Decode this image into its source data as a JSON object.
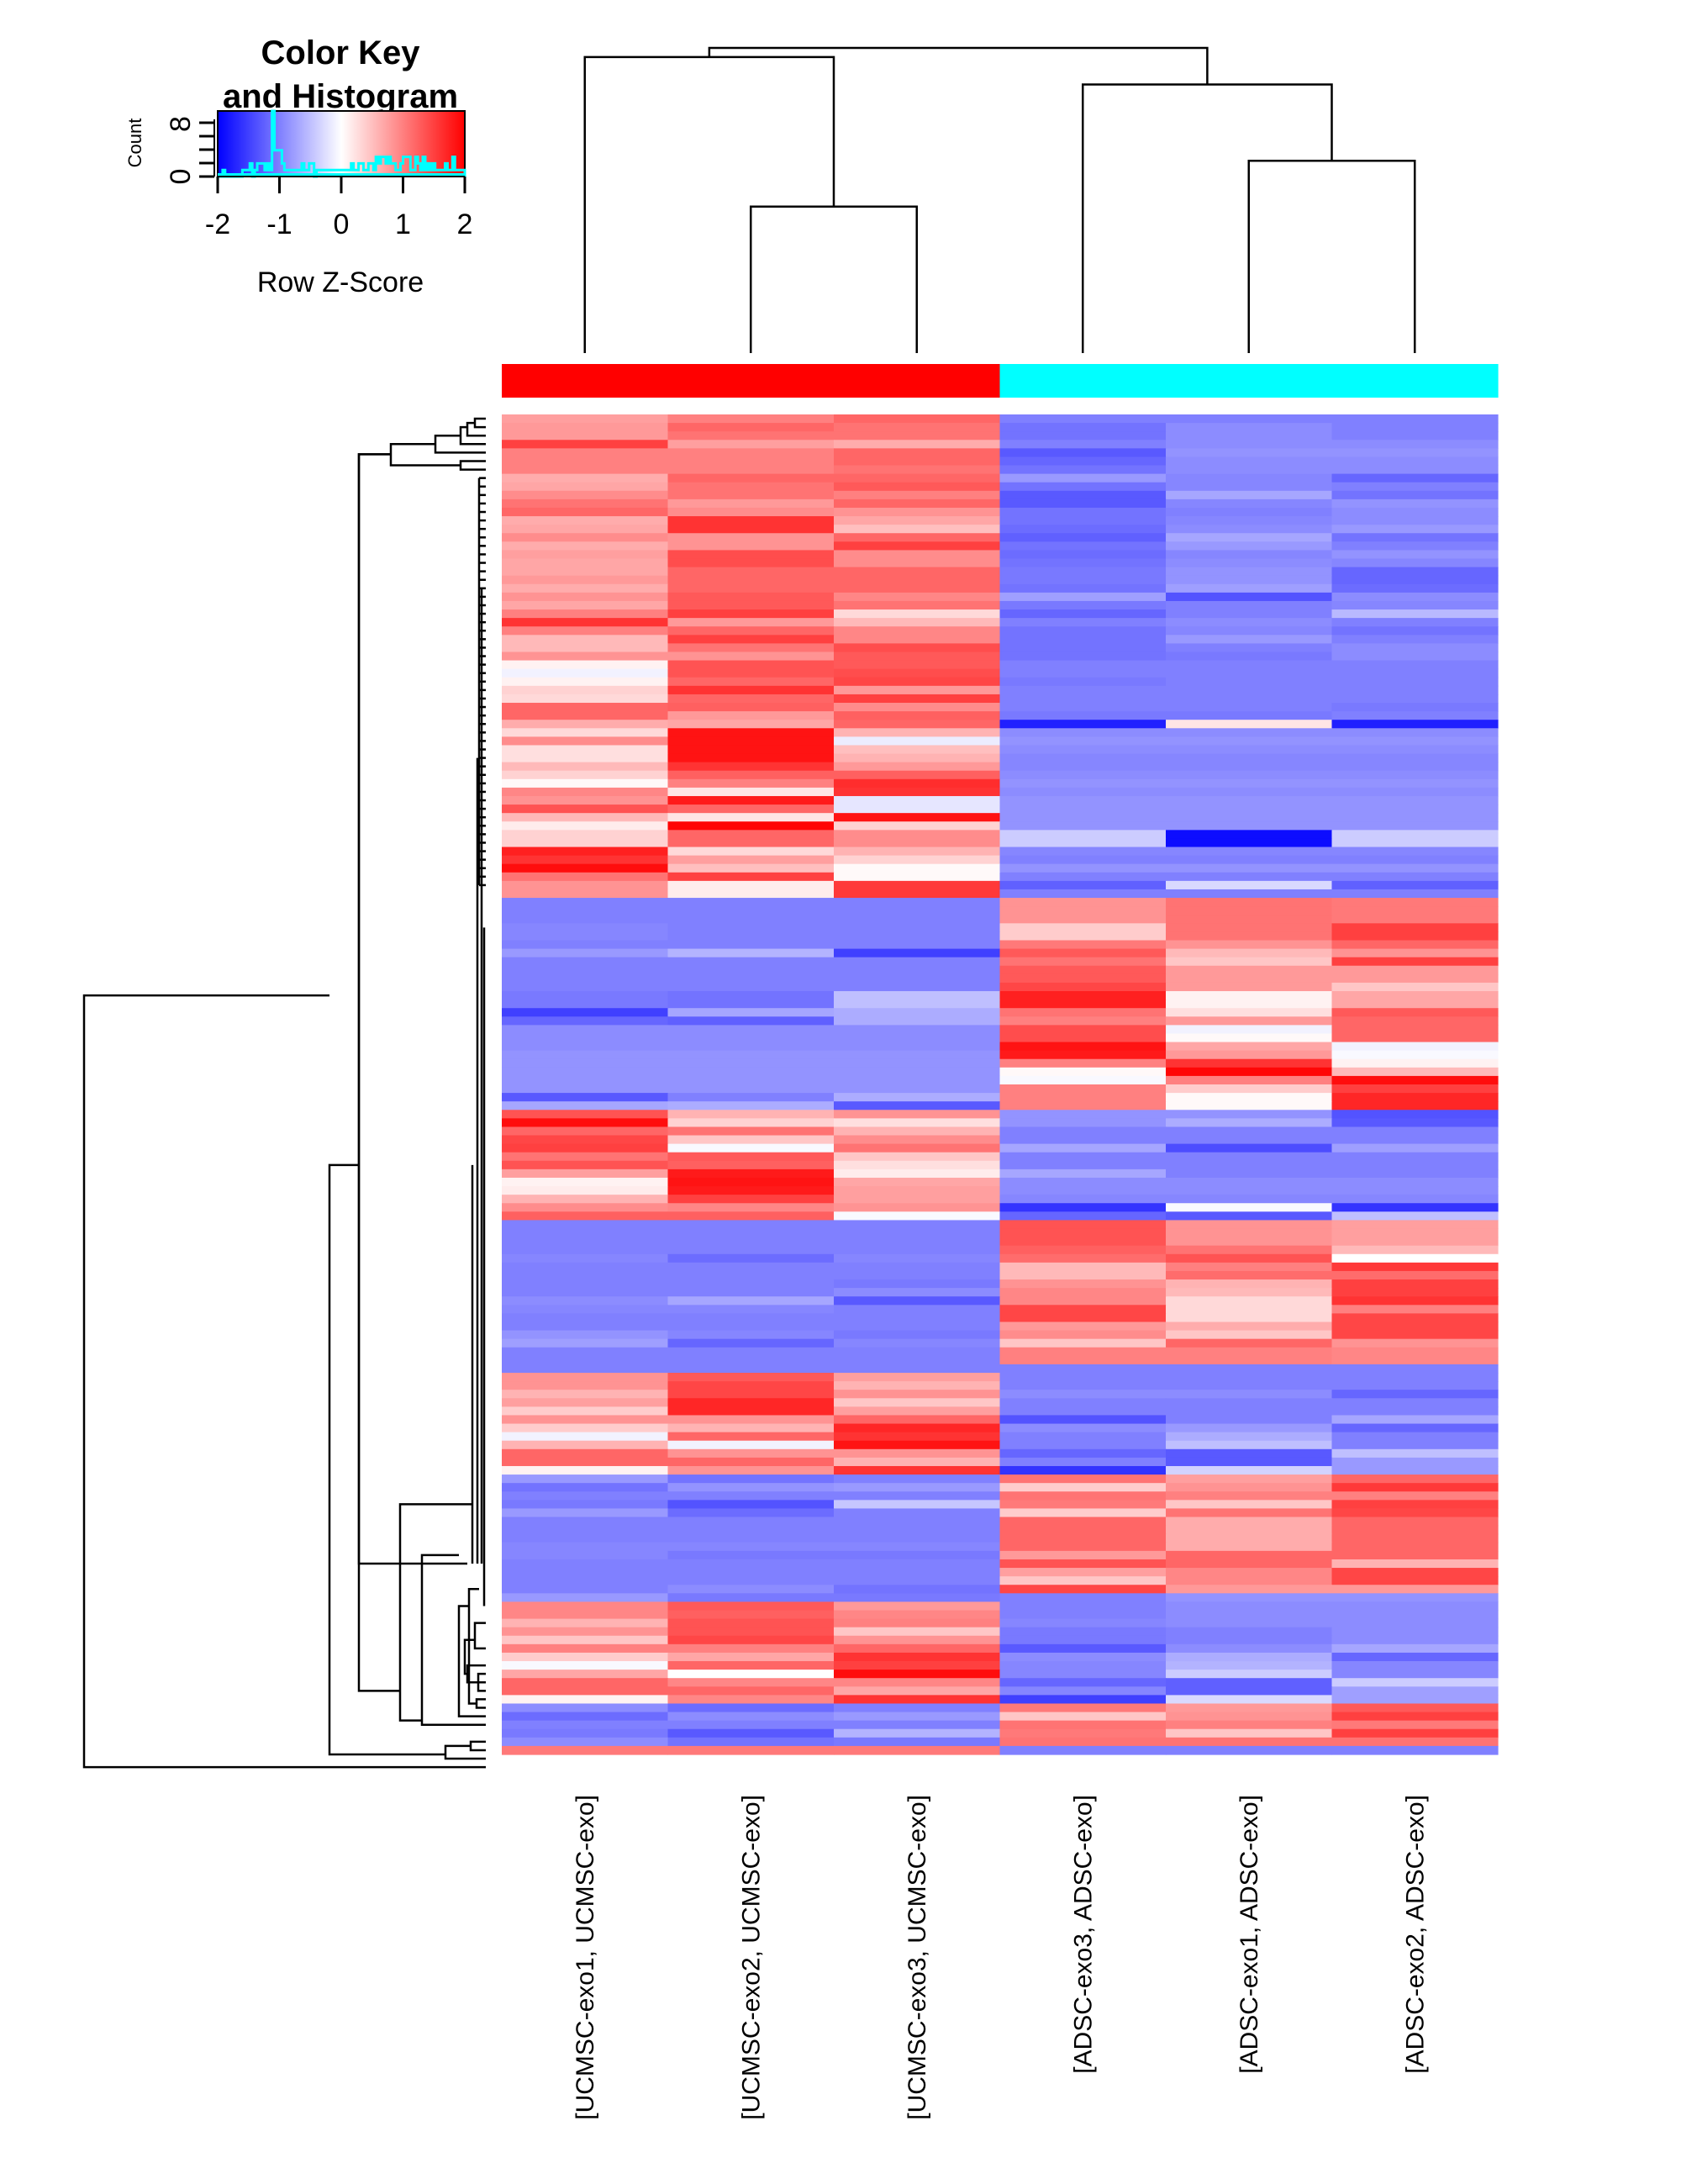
{
  "chart_data": {
    "type": "heatmap",
    "title": "",
    "color_key": {
      "title_line1": "Color Key",
      "title_line2": "and Histogram",
      "xlabel": "Row Z-Score",
      "ylabel": "Count",
      "x_ticks": [
        "-2",
        "-1",
        "0",
        "1",
        "2"
      ],
      "x_range": [
        -2,
        2
      ],
      "y_ticks": [
        "0",
        "8"
      ],
      "y_range": [
        0,
        10
      ],
      "low_color": "#0000ff",
      "mid_color": "#ffffff",
      "high_color": "#ff0000",
      "histogram_color": "#00ffff",
      "histogram_counts": [
        0,
        0,
        1,
        0,
        0,
        0,
        0,
        0,
        0,
        0,
        1,
        1,
        1,
        2,
        0,
        1,
        2,
        2,
        2,
        1,
        2,
        1,
        10,
        4,
        4,
        4,
        2,
        1,
        1,
        1,
        1,
        1,
        1,
        1,
        2,
        1,
        1,
        2,
        2,
        0,
        1,
        1,
        1,
        1,
        1,
        1,
        1,
        1,
        1,
        1,
        1,
        1,
        1,
        1,
        2,
        1,
        1,
        2,
        2,
        1,
        1,
        2,
        2,
        1,
        3,
        2,
        3,
        3,
        2,
        3,
        2,
        2,
        1,
        1,
        2,
        3,
        3,
        3,
        1,
        1,
        3,
        2,
        1,
        3,
        1,
        2,
        1,
        2,
        1,
        1,
        1,
        1,
        2,
        1,
        1,
        3,
        1,
        1,
        1,
        1
      ]
    },
    "columns": [
      "[UCMSC-exo1, UCMSC-exo]",
      "[UCMSC-exo2, UCMSC-exo]",
      "[UCMSC-exo3, UCMSC-exo]",
      "[ADSC-exo3, ADSC-exo]",
      "[ADSC-exo1, ADSC-exo]",
      "[ADSC-exo2, ADSC-exo]"
    ],
    "column_groups": [
      "UCMSC-exo",
      "UCMSC-exo",
      "UCMSC-exo",
      "ADSC-exo",
      "ADSC-exo",
      "ADSC-exo"
    ],
    "group_colors": {
      "UCMSC-exo": "#ff0000",
      "ADSC-exo": "#00ffff"
    },
    "column_dendrogram": {
      "merges": [
        {
          "left": [
            1
          ],
          "right": [
            2
          ],
          "height": 0.48
        },
        {
          "left": [
            4
          ],
          "right": [
            5
          ],
          "height": 0.63
        },
        {
          "left": [
            0
          ],
          "right": [
            1,
            2
          ],
          "height": 0.97
        },
        {
          "left": [
            3
          ],
          "right": [
            4,
            5
          ],
          "height": 0.88
        },
        {
          "left": [
            0,
            1,
            2
          ],
          "right": [
            3,
            4,
            5
          ],
          "height": 1.0
        }
      ]
    },
    "rows": [
      [
        0.75,
        1.0,
        1.2,
        -1.0,
        -1.0,
        -1.0
      ],
      [
        0.8,
        1.2,
        1.1,
        -1.1,
        -0.9,
        -1.0
      ],
      [
        0.8,
        1.1,
        1.1,
        -1.1,
        -0.9,
        -1.0
      ],
      [
        1.5,
        0.75,
        0.65,
        -1.0,
        -0.9,
        -0.9
      ],
      [
        1.0,
        1.0,
        1.2,
        -1.3,
        -0.85,
        -0.85
      ],
      [
        1.0,
        1.0,
        1.2,
        -1.2,
        -0.9,
        -0.9
      ],
      [
        1.0,
        1.0,
        1.1,
        -1.1,
        -0.9,
        -0.9
      ],
      [
        0.65,
        1.2,
        1.2,
        -0.8,
        -0.95,
        -1.2
      ],
      [
        0.7,
        1.1,
        1.3,
        -1.1,
        -0.95,
        -1.0
      ],
      [
        0.9,
        1.1,
        1.0,
        -1.3,
        -0.7,
        -1.1
      ],
      [
        1.1,
        0.8,
        1.2,
        -1.3,
        -0.95,
        -0.85
      ],
      [
        1.2,
        0.9,
        0.85,
        -1.1,
        -1.0,
        -0.9
      ],
      [
        0.65,
        1.6,
        0.7,
        -1.1,
        -0.95,
        -0.9
      ],
      [
        0.7,
        1.6,
        0.5,
        -1.15,
        -0.9,
        -0.8
      ],
      [
        0.9,
        0.85,
        1.2,
        -1.25,
        -0.7,
        -1.1
      ],
      [
        0.65,
        0.85,
        1.5,
        -1.1,
        -0.8,
        -1.0
      ],
      [
        0.75,
        1.4,
        0.9,
        -1.15,
        -0.95,
        -0.85
      ],
      [
        0.7,
        1.4,
        0.9,
        -1.1,
        -0.9,
        -0.95
      ],
      [
        0.7,
        1.2,
        1.2,
        -1.05,
        -0.85,
        -1.2
      ],
      [
        0.8,
        1.2,
        1.2,
        -1.05,
        -0.85,
        -1.2
      ],
      [
        0.65,
        1.2,
        1.2,
        -1.1,
        -0.75,
        -1.15
      ],
      [
        0.85,
        1.3,
        0.95,
        -0.75,
        -1.35,
        -0.9
      ],
      [
        0.7,
        1.3,
        1.1,
        -1.05,
        -1.0,
        -0.95
      ],
      [
        1.0,
        1.5,
        0.3,
        -1.2,
        -1.0,
        -0.55
      ],
      [
        1.6,
        0.8,
        0.55,
        -1.0,
        -0.9,
        -1.0
      ],
      [
        1.0,
        1.2,
        0.95,
        -1.1,
        -0.95,
        -1.1
      ],
      [
        0.55,
        1.5,
        0.95,
        -1.1,
        -0.8,
        -1.0
      ],
      [
        0.55,
        1.1,
        1.4,
        -1.1,
        -1.0,
        -0.9
      ],
      [
        0.85,
        0.85,
        1.3,
        -1.1,
        -1.05,
        -0.9
      ],
      [
        0.1,
        1.35,
        1.3,
        -1.0,
        -1.0,
        -1.0
      ],
      [
        -0.1,
        1.35,
        1.4,
        -1.0,
        -1.0,
        -1.0
      ],
      [
        0.1,
        1.2,
        1.45,
        -1.05,
        -1.0,
        -1.0
      ],
      [
        0.35,
        1.6,
        0.8,
        -1.0,
        -1.0,
        -1.0
      ],
      [
        0.3,
        1.2,
        1.5,
        -1.0,
        -1.0,
        -1.0
      ],
      [
        1.2,
        1.25,
        0.9,
        -1.0,
        -1.0,
        -1.05
      ],
      [
        1.2,
        0.8,
        1.25,
        -1.05,
        -1.05,
        -1.0
      ],
      [
        0.65,
        0.7,
        1.2,
        -1.75,
        0.2,
        -1.75
      ],
      [
        0.3,
        1.85,
        0.6,
        -0.9,
        -0.9,
        -0.9
      ],
      [
        0.9,
        1.85,
        -0.15,
        -0.85,
        -0.85,
        -0.85
      ],
      [
        0.25,
        1.85,
        0.5,
        -0.9,
        -0.9,
        -0.9
      ],
      [
        0.25,
        1.85,
        0.6,
        -0.95,
        -0.95,
        -0.95
      ],
      [
        0.55,
        1.6,
        0.8,
        -0.95,
        -0.95,
        -0.95
      ],
      [
        0.35,
        1.25,
        1.25,
        -0.9,
        -0.9,
        -0.9
      ],
      [
        0.05,
        1.0,
        1.65,
        -0.85,
        -0.85,
        -0.85
      ],
      [
        0.95,
        0.2,
        1.6,
        -0.9,
        -0.9,
        -0.9
      ],
      [
        0.85,
        1.8,
        -0.2,
        -0.85,
        -0.85,
        -0.85
      ],
      [
        1.35,
        1.2,
        -0.2,
        -0.85,
        -0.85,
        -0.85
      ],
      [
        0.55,
        0.2,
        1.85,
        -0.85,
        -0.85,
        -0.85
      ],
      [
        0.15,
        1.95,
        0.35,
        -0.85,
        -0.85,
        -0.85
      ],
      [
        0.35,
        1.2,
        0.9,
        -0.4,
        -1.9,
        -0.4
      ],
      [
        0.35,
        1.2,
        0.9,
        -0.4,
        -1.9,
        -0.4
      ],
      [
        1.75,
        0.3,
        0.6,
        -0.95,
        -0.95,
        -0.95
      ],
      [
        1.6,
        0.75,
        0.35,
        -1.0,
        -1.0,
        -1.0
      ],
      [
        1.9,
        0.5,
        0.05,
        -0.85,
        -0.85,
        -0.85
      ],
      [
        1.1,
        1.5,
        0.05,
        -1.0,
        -1.0,
        -1.0
      ],
      [
        0.85,
        0.15,
        1.55,
        -1.25,
        -0.3,
        -1.25
      ],
      [
        0.85,
        0.15,
        1.55,
        -1.0,
        -1.0,
        -1.0
      ],
      [
        -1.0,
        -1.0,
        -1.0,
        0.85,
        1.1,
        1.05
      ],
      [
        -1.0,
        -1.0,
        -1.0,
        0.85,
        1.1,
        1.05
      ],
      [
        -1.0,
        -1.0,
        -1.0,
        0.85,
        1.1,
        1.05
      ],
      [
        -0.95,
        -1.0,
        -1.0,
        0.4,
        1.1,
        1.5
      ],
      [
        -0.95,
        -1.0,
        -1.0,
        0.4,
        1.1,
        1.5
      ],
      [
        -1.0,
        -1.0,
        -1.0,
        1.05,
        0.85,
        1.2
      ],
      [
        -0.8,
        -0.6,
        -1.5,
        1.3,
        0.55,
        0.85
      ],
      [
        -1.0,
        -1.0,
        -1.0,
        1.1,
        0.45,
        1.5
      ],
      [
        -1.0,
        -1.0,
        -1.0,
        1.3,
        0.8,
        0.8
      ],
      [
        -1.0,
        -1.0,
        -1.0,
        1.3,
        0.8,
        0.8
      ],
      [
        -1.0,
        -1.0,
        -1.0,
        1.45,
        0.8,
        0.45
      ],
      [
        -1.05,
        -1.1,
        -0.5,
        1.75,
        0.1,
        0.7
      ],
      [
        -1.05,
        -1.1,
        -0.5,
        1.75,
        0.1,
        0.7
      ],
      [
        -1.5,
        -0.7,
        -0.65,
        1.1,
        0.25,
        1.3
      ],
      [
        -1.2,
        -1.25,
        -0.65,
        1.0,
        0.8,
        1.2
      ],
      [
        -0.9,
        -0.9,
        -0.9,
        1.4,
        -0.1,
        1.2
      ],
      [
        -0.9,
        -0.9,
        -0.9,
        1.4,
        0.05,
        1.2
      ],
      [
        -0.9,
        -0.9,
        -0.9,
        1.85,
        0.7,
        -0.1
      ],
      [
        -0.85,
        -0.85,
        -0.85,
        1.8,
        0.8,
        -0.05
      ],
      [
        -0.85,
        -0.85,
        -0.85,
        1.0,
        1.6,
        0.1
      ],
      [
        -0.85,
        -0.85,
        -0.85,
        0.05,
        1.95,
        0.55
      ],
      [
        -0.85,
        -0.85,
        -0.85,
        -0.05,
        1.0,
        1.9
      ],
      [
        -0.85,
        -0.85,
        -0.85,
        1.0,
        0.4,
        1.5
      ],
      [
        -1.3,
        -1.0,
        -0.65,
        1.0,
        0.05,
        1.7
      ],
      [
        -0.7,
        -0.65,
        -1.3,
        1.0,
        0.05,
        1.7
      ],
      [
        1.35,
        0.6,
        0.85,
        -0.85,
        -0.85,
        -1.35
      ],
      [
        1.9,
        0.35,
        0.25,
        -0.85,
        -0.65,
        -1.3
      ],
      [
        1.2,
        1.1,
        0.6,
        -1.0,
        -1.0,
        -1.0
      ],
      [
        1.45,
        0.45,
        0.9,
        -1.0,
        -1.0,
        -1.0
      ],
      [
        1.5,
        -0.05,
        1.1,
        -0.7,
        -1.4,
        -0.75
      ],
      [
        1.1,
        1.3,
        0.45,
        -1.0,
        -1.0,
        -1.0
      ],
      [
        1.35,
        1.25,
        0.25,
        -1.0,
        -1.0,
        -1.0
      ],
      [
        0.75,
        1.8,
        0.15,
        -0.7,
        -1.0,
        -1.0
      ],
      [
        0.1,
        1.85,
        0.7,
        -0.9,
        -0.9,
        -0.9
      ],
      [
        0.15,
        1.8,
        0.75,
        -0.9,
        -0.9,
        -0.9
      ],
      [
        0.6,
        1.5,
        0.75,
        -0.95,
        -0.95,
        -0.95
      ],
      [
        0.9,
        0.95,
        0.85,
        -1.6,
        -0.05,
        -1.6
      ],
      [
        1.25,
        1.25,
        -0.05,
        -1.2,
        -1.3,
        -0.5
      ],
      [
        -1.0,
        -1.0,
        -1.0,
        1.35,
        0.85,
        0.75
      ],
      [
        -1.0,
        -1.0,
        -1.0,
        1.35,
        0.85,
        0.75
      ],
      [
        -1.0,
        -1.0,
        -1.0,
        1.35,
        0.85,
        0.75
      ],
      [
        -1.0,
        -1.0,
        -1.0,
        1.25,
        1.1,
        0.55
      ],
      [
        -0.95,
        -1.15,
        -0.95,
        1.15,
        1.35,
        0.0
      ],
      [
        -1.0,
        -1.0,
        -1.0,
        0.55,
        1.0,
        1.55
      ],
      [
        -1.0,
        -1.0,
        -1.0,
        0.55,
        1.15,
        1.15
      ],
      [
        -1.0,
        -1.0,
        -1.05,
        0.85,
        0.6,
        1.5
      ],
      [
        -1.0,
        -1.0,
        -0.9,
        0.95,
        0.55,
        1.5
      ],
      [
        -0.9,
        -0.7,
        -1.3,
        0.95,
        0.3,
        1.6
      ],
      [
        -0.95,
        -0.95,
        -1.0,
        1.45,
        0.3,
        1.0
      ],
      [
        -1.0,
        -1.0,
        -1.0,
        1.45,
        0.3,
        1.45
      ],
      [
        -1.0,
        -1.0,
        -1.0,
        0.8,
        0.65,
        1.45
      ],
      [
        -0.85,
        -0.95,
        -1.05,
        0.9,
        0.45,
        1.45
      ],
      [
        -0.75,
        -1.2,
        -0.95,
        0.45,
        1.2,
        0.85
      ],
      [
        -1.0,
        -1.0,
        -1.0,
        1.0,
        1.0,
        0.95
      ],
      [
        -1.0,
        -1.0,
        -1.0,
        1.0,
        1.0,
        0.95
      ],
      [
        -1.0,
        -1.0,
        -1.0,
        -1.0,
        -1.0,
        -1.0
      ],
      [
        0.85,
        1.3,
        0.75,
        -1.0,
        -1.0,
        -1.0
      ],
      [
        0.85,
        1.45,
        0.6,
        -1.0,
        -1.0,
        -1.0
      ],
      [
        0.6,
        1.45,
        0.85,
        -0.9,
        -0.9,
        -1.2
      ],
      [
        0.75,
        1.7,
        0.45,
        -1.0,
        -1.0,
        -1.0
      ],
      [
        0.4,
        1.7,
        0.75,
        -1.0,
        -1.0,
        -1.0
      ],
      [
        0.85,
        0.85,
        1.2,
        -1.35,
        -1.0,
        -0.7
      ],
      [
        0.4,
        0.6,
        1.7,
        -0.9,
        -0.8,
        -1.2
      ],
      [
        -0.1,
        1.2,
        1.6,
        -1.0,
        -0.65,
        -1.0
      ],
      [
        0.6,
        -0.1,
        1.85,
        -1.0,
        -0.5,
        -1.0
      ],
      [
        1.2,
        0.85,
        0.85,
        -1.2,
        -1.3,
        -0.5
      ],
      [
        1.2,
        1.2,
        0.6,
        -1.0,
        -1.3,
        -0.8
      ],
      [
        0.1,
        0.85,
        1.6,
        -1.6,
        -0.35,
        -0.8
      ],
      [
        -0.8,
        -1.1,
        -1.0,
        1.1,
        0.75,
        1.2
      ],
      [
        -1.1,
        -0.85,
        -0.8,
        0.4,
        0.85,
        1.55
      ],
      [
        -1.0,
        -1.0,
        -1.0,
        1.1,
        1.0,
        1.0
      ],
      [
        -1.05,
        -1.35,
        -0.45,
        1.05,
        0.45,
        1.5
      ],
      [
        -0.8,
        -1.15,
        -1.0,
        0.4,
        1.1,
        1.45
      ],
      [
        -1.0,
        -1.0,
        -1.0,
        1.2,
        0.65,
        1.2
      ],
      [
        -1.0,
        -1.0,
        -1.0,
        1.2,
        0.65,
        1.2
      ],
      [
        -1.0,
        -1.0,
        -1.0,
        1.2,
        0.65,
        1.2
      ],
      [
        -0.95,
        -0.95,
        -0.95,
        1.2,
        0.65,
        1.2
      ],
      [
        -0.95,
        -1.05,
        -1.05,
        0.8,
        1.2,
        1.2
      ],
      [
        -1.0,
        -1.0,
        -1.0,
        1.35,
        1.2,
        0.6
      ],
      [
        -1.0,
        -1.0,
        -1.0,
        0.75,
        0.95,
        1.45
      ],
      [
        -1.0,
        -1.0,
        -1.0,
        0.45,
        0.95,
        1.45
      ],
      [
        -1.0,
        -0.9,
        -1.1,
        1.45,
        0.8,
        0.8
      ],
      [
        -0.8,
        -1.05,
        -1.05,
        -1.0,
        -0.85,
        -0.85
      ],
      [
        0.95,
        1.3,
        0.8,
        -1.0,
        -0.9,
        -0.9
      ],
      [
        0.95,
        1.25,
        0.95,
        -1.0,
        -0.9,
        -0.9
      ],
      [
        0.6,
        1.35,
        1.0,
        -0.95,
        -0.9,
        -0.9
      ],
      [
        0.85,
        1.35,
        0.45,
        -1.05,
        -1.0,
        -0.9
      ],
      [
        0.45,
        1.45,
        0.85,
        -1.05,
        -1.0,
        -0.9
      ],
      [
        1.0,
        1.0,
        1.2,
        -1.3,
        -0.9,
        -0.7
      ],
      [
        0.4,
        0.7,
        1.6,
        -0.9,
        -0.65,
        -1.2
      ],
      [
        -0.05,
        1.2,
        1.5,
        -0.95,
        -0.6,
        -0.95
      ],
      [
        0.7,
        0.0,
        1.9,
        -0.95,
        -0.4,
        -0.95
      ],
      [
        1.2,
        0.95,
        0.95,
        -1.2,
        -1.25,
        -0.4
      ],
      [
        1.2,
        1.2,
        0.7,
        -0.95,
        -1.25,
        -0.75
      ],
      [
        0.1,
        0.95,
        1.6,
        -1.5,
        -0.3,
        -0.75
      ],
      [
        -0.9,
        -1.15,
        -1.0,
        1.05,
        0.8,
        1.3
      ],
      [
        -1.15,
        -0.9,
        -0.8,
        0.45,
        0.85,
        1.5
      ],
      [
        -1.0,
        -1.0,
        -1.0,
        1.1,
        1.0,
        1.05
      ],
      [
        -1.05,
        -1.3,
        -0.6,
        1.05,
        0.45,
        1.5
      ],
      [
        -0.9,
        -1.1,
        -1.05,
        1.1,
        1.1,
        1.1
      ],
      [
        1.05,
        1.05,
        1.05,
        -1.0,
        -1.0,
        -1.0
      ]
    ]
  }
}
